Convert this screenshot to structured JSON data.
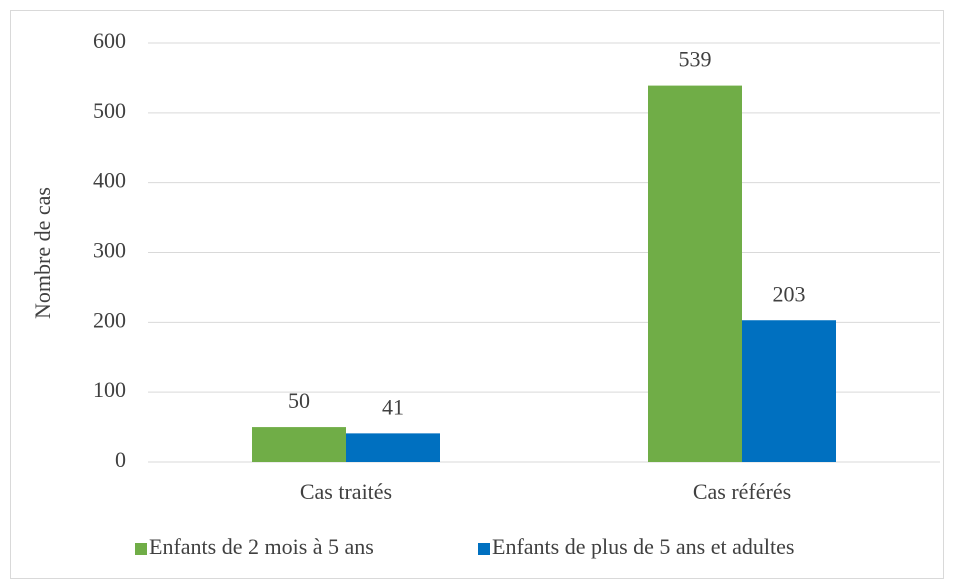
{
  "chart_data": {
    "type": "bar",
    "y_label": "Nombre de cas",
    "categories": [
      "Cas traités",
      "Cas référés"
    ],
    "series": [
      {
        "name": "Enfants de 2 mois à 5 ans",
        "color": "#70ad47",
        "values": [
          50,
          539
        ]
      },
      {
        "name": "Enfants de plus de 5 ans et adultes",
        "color": "#0070c0",
        "values": [
          41,
          203
        ]
      }
    ],
    "ylim": [
      0,
      600
    ],
    "yticks": [
      0,
      100,
      200,
      300,
      400,
      500,
      600
    ],
    "grid": true,
    "legend": "bottom"
  }
}
